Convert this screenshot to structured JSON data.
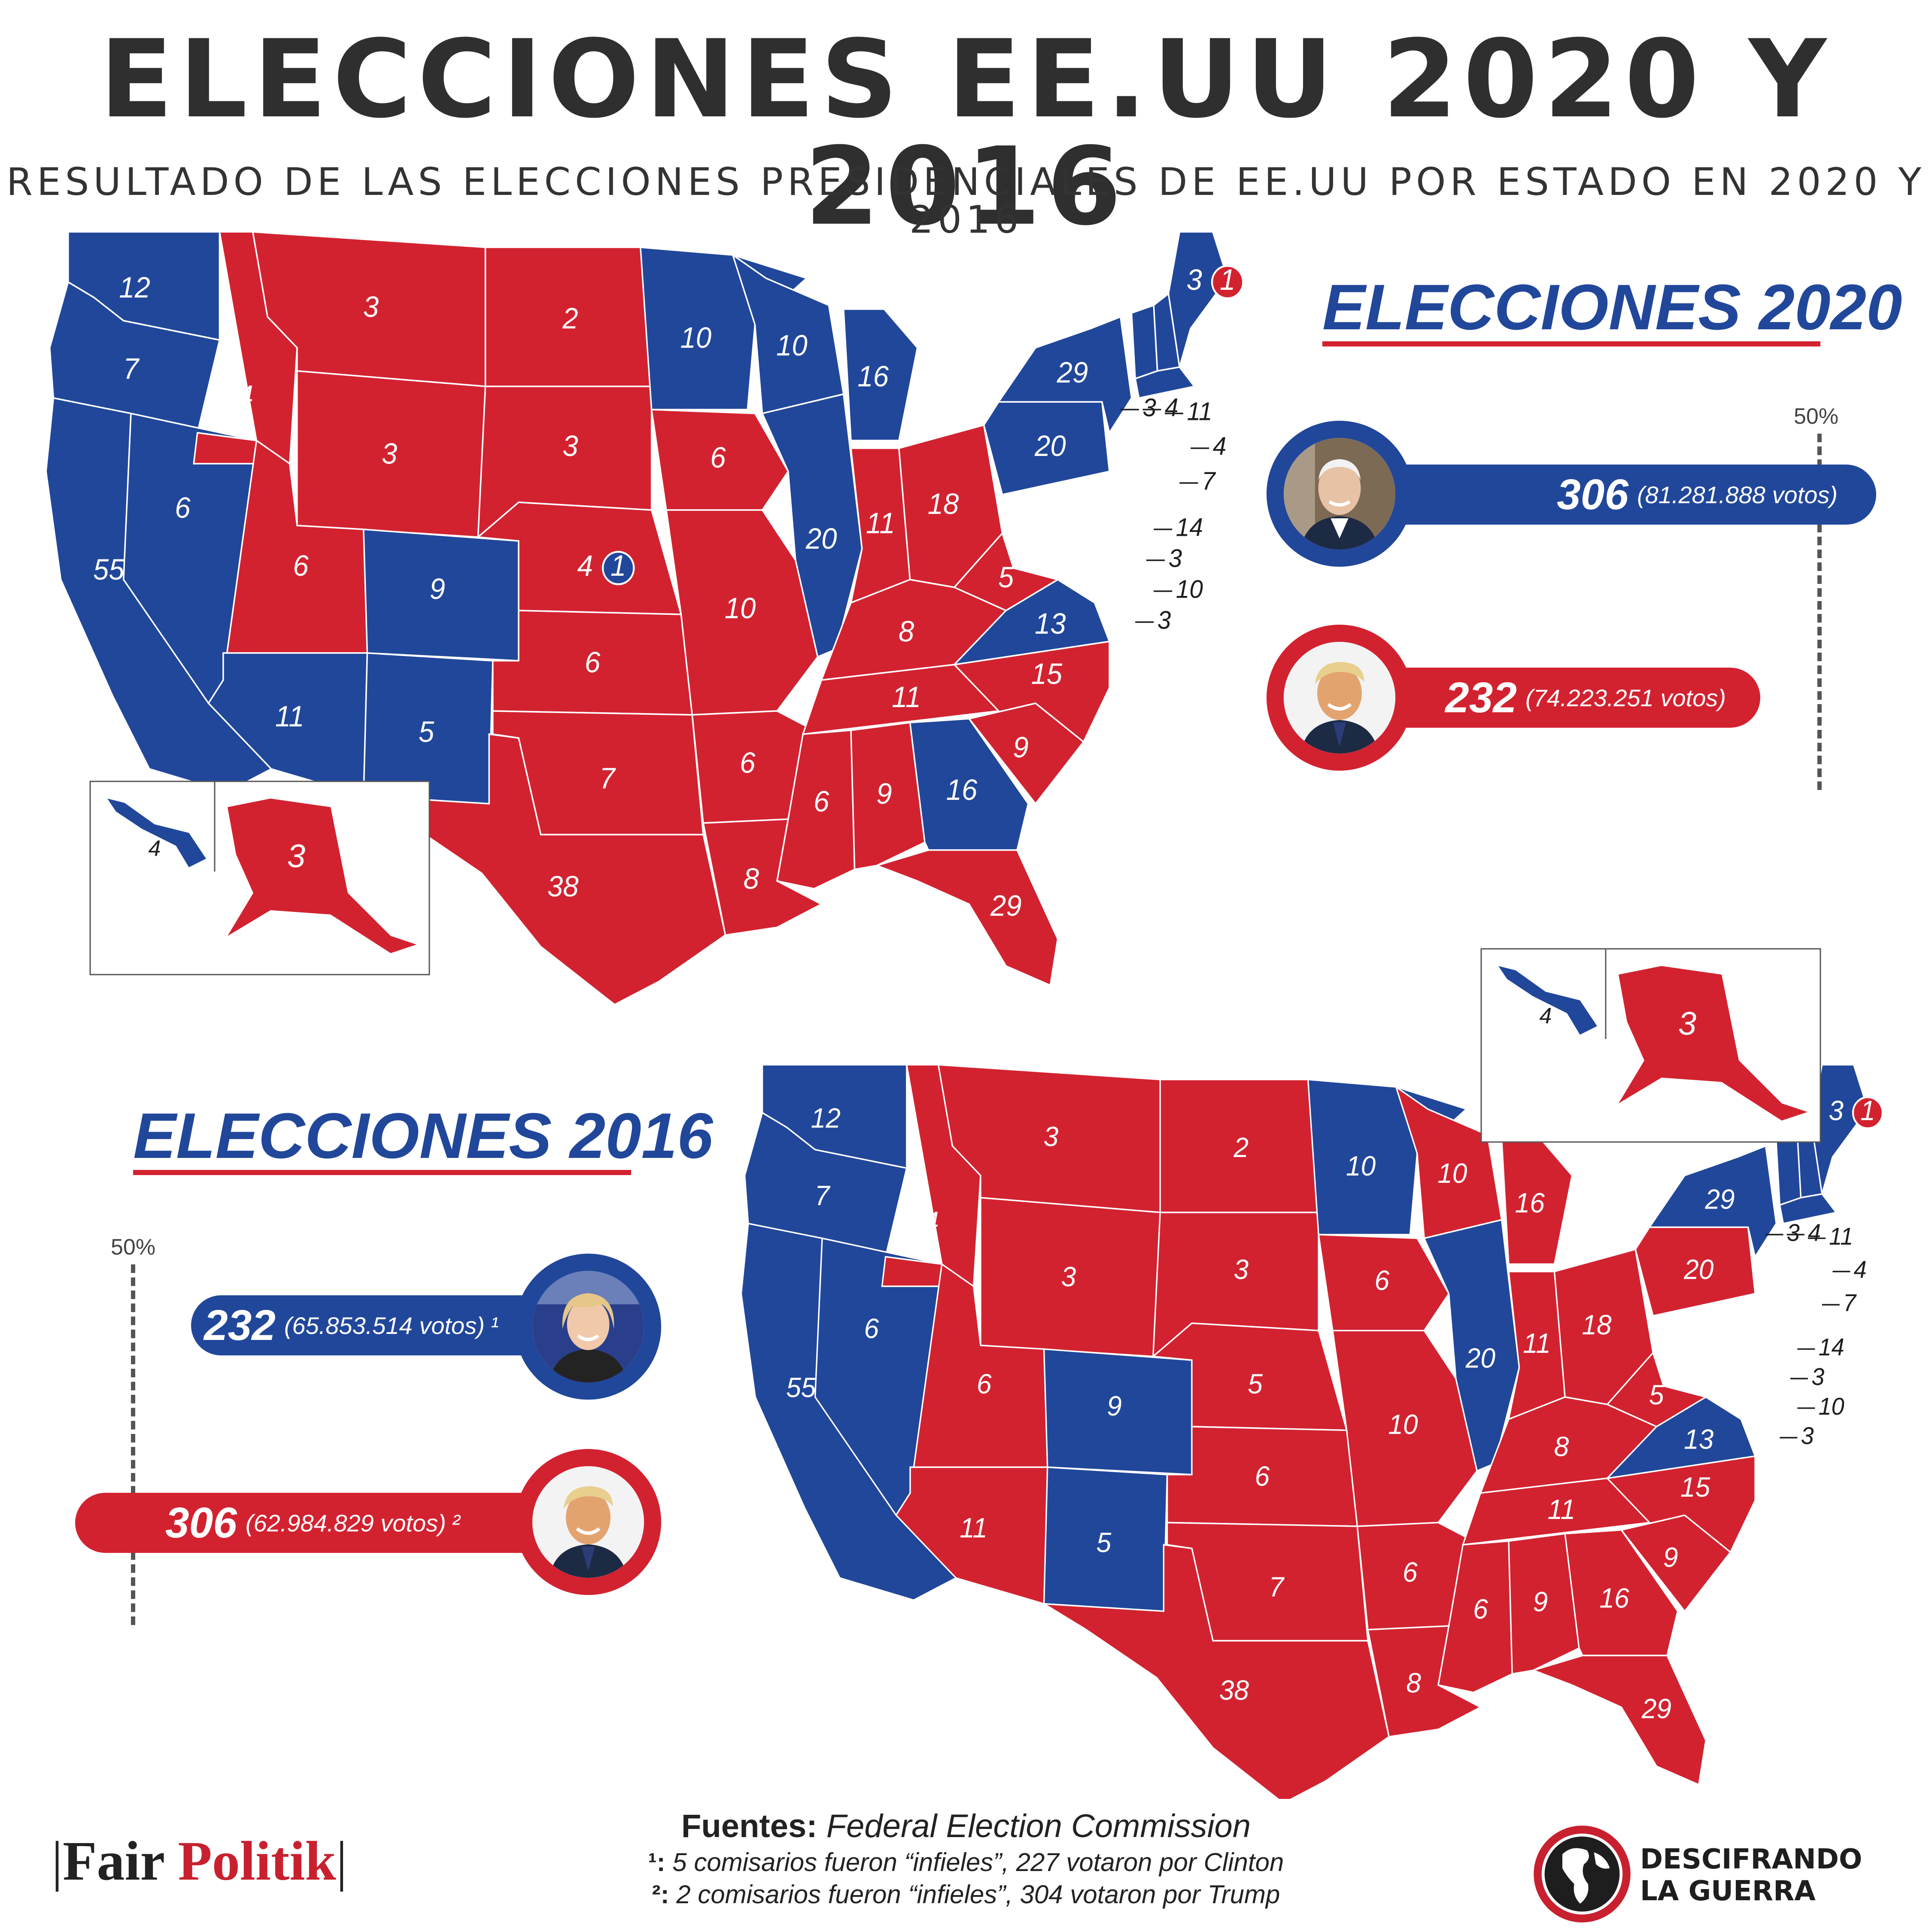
{
  "header": {
    "title": "ELECCIONES EE.UU 2020 Y 2016",
    "subtitle": "RESULTADO DE LAS ELECCIONES PRESIDENCIALES DE EE.UU POR ESTADO EN 2020 Y 2016"
  },
  "colors": {
    "democrat": "#21479a",
    "republican": "#d22230"
  },
  "map_2020": {
    "heading": "ELECCIONES 2020",
    "threshold_label": "50%",
    "states": [
      {
        "id": "WA",
        "votes": "12",
        "party": "D"
      },
      {
        "id": "OR",
        "votes": "7",
        "party": "D"
      },
      {
        "id": "CA",
        "votes": "55",
        "party": "D"
      },
      {
        "id": "NV",
        "votes": "6",
        "party": "D"
      },
      {
        "id": "ID",
        "votes": "4",
        "party": "R"
      },
      {
        "id": "MT",
        "votes": "3",
        "party": "R"
      },
      {
        "id": "WY",
        "votes": "3",
        "party": "R"
      },
      {
        "id": "UT",
        "votes": "6",
        "party": "R"
      },
      {
        "id": "CO",
        "votes": "9",
        "party": "D"
      },
      {
        "id": "AZ",
        "votes": "11",
        "party": "D"
      },
      {
        "id": "NM",
        "votes": "5",
        "party": "D"
      },
      {
        "id": "ND",
        "votes": "2",
        "party": "R"
      },
      {
        "id": "SD",
        "votes": "3",
        "party": "R"
      },
      {
        "id": "NE",
        "votes": "4",
        "party": "R",
        "split": "1"
      },
      {
        "id": "KS",
        "votes": "6",
        "party": "R"
      },
      {
        "id": "OK",
        "votes": "7",
        "party": "R"
      },
      {
        "id": "TX",
        "votes": "38",
        "party": "R"
      },
      {
        "id": "MN",
        "votes": "10",
        "party": "D"
      },
      {
        "id": "IA",
        "votes": "6",
        "party": "R"
      },
      {
        "id": "MO",
        "votes": "10",
        "party": "R"
      },
      {
        "id": "AR",
        "votes": "6",
        "party": "R"
      },
      {
        "id": "LA",
        "votes": "8",
        "party": "R"
      },
      {
        "id": "WI",
        "votes": "10",
        "party": "D"
      },
      {
        "id": "IL",
        "votes": "20",
        "party": "D"
      },
      {
        "id": "MI",
        "votes": "16",
        "party": "D"
      },
      {
        "id": "IN",
        "votes": "11",
        "party": "R"
      },
      {
        "id": "OH",
        "votes": "18",
        "party": "R"
      },
      {
        "id": "KY",
        "votes": "8",
        "party": "R"
      },
      {
        "id": "TN",
        "votes": "11",
        "party": "R"
      },
      {
        "id": "MS",
        "votes": "6",
        "party": "R"
      },
      {
        "id": "AL",
        "votes": "9",
        "party": "R"
      },
      {
        "id": "GA",
        "votes": "16",
        "party": "D"
      },
      {
        "id": "FL",
        "votes": "29",
        "party": "R"
      },
      {
        "id": "SC",
        "votes": "9",
        "party": "R"
      },
      {
        "id": "NC",
        "votes": "15",
        "party": "R"
      },
      {
        "id": "VA",
        "votes": "13",
        "party": "D"
      },
      {
        "id": "WV",
        "votes": "5",
        "party": "R"
      },
      {
        "id": "PA",
        "votes": "20",
        "party": "D"
      },
      {
        "id": "NY",
        "votes": "29",
        "party": "D"
      },
      {
        "id": "VT",
        "votes": "3",
        "party": "D"
      },
      {
        "id": "NH",
        "votes": "4",
        "party": "D"
      },
      {
        "id": "ME",
        "votes": "3",
        "party": "D",
        "split": "1"
      },
      {
        "id": "MA",
        "votes": "11",
        "party": "D"
      },
      {
        "id": "RI",
        "votes": "4",
        "party": "D"
      },
      {
        "id": "CT",
        "votes": "7",
        "party": "D"
      },
      {
        "id": "NJ",
        "votes": "14",
        "party": "D"
      },
      {
        "id": "DE",
        "votes": "3",
        "party": "D"
      },
      {
        "id": "MD",
        "votes": "10",
        "party": "D"
      },
      {
        "id": "DC",
        "votes": "3",
        "party": "D"
      },
      {
        "id": "HI",
        "votes": "4",
        "party": "D"
      },
      {
        "id": "AK",
        "votes": "3",
        "party": "R"
      }
    ],
    "candidates": [
      {
        "name": "Biden",
        "electoral_votes": "306",
        "popular_votes": "(81.281.888 votos)",
        "party": "D",
        "share": 0.569
      },
      {
        "name": "Trump",
        "electoral_votes": "232",
        "popular_votes": "(74.223.251 votos)",
        "party": "R",
        "share": 0.431
      }
    ]
  },
  "map_2016": {
    "heading": "ELECCIONES 2016",
    "threshold_label": "50%",
    "states": [
      {
        "id": "WA",
        "votes": "12",
        "party": "D"
      },
      {
        "id": "OR",
        "votes": "7",
        "party": "D"
      },
      {
        "id": "CA",
        "votes": "55",
        "party": "D"
      },
      {
        "id": "NV",
        "votes": "6",
        "party": "D"
      },
      {
        "id": "ID",
        "votes": "4",
        "party": "R"
      },
      {
        "id": "MT",
        "votes": "3",
        "party": "R"
      },
      {
        "id": "WY",
        "votes": "3",
        "party": "R"
      },
      {
        "id": "UT",
        "votes": "6",
        "party": "R"
      },
      {
        "id": "CO",
        "votes": "9",
        "party": "D"
      },
      {
        "id": "AZ",
        "votes": "11",
        "party": "R"
      },
      {
        "id": "NM",
        "votes": "5",
        "party": "D"
      },
      {
        "id": "ND",
        "votes": "2",
        "party": "R"
      },
      {
        "id": "SD",
        "votes": "3",
        "party": "R"
      },
      {
        "id": "NE",
        "votes": "5",
        "party": "R"
      },
      {
        "id": "KS",
        "votes": "6",
        "party": "R"
      },
      {
        "id": "OK",
        "votes": "7",
        "party": "R"
      },
      {
        "id": "TX",
        "votes": "38",
        "party": "R"
      },
      {
        "id": "MN",
        "votes": "10",
        "party": "D"
      },
      {
        "id": "IA",
        "votes": "6",
        "party": "R"
      },
      {
        "id": "MO",
        "votes": "10",
        "party": "R"
      },
      {
        "id": "AR",
        "votes": "6",
        "party": "R"
      },
      {
        "id": "LA",
        "votes": "8",
        "party": "R"
      },
      {
        "id": "WI",
        "votes": "10",
        "party": "R"
      },
      {
        "id": "IL",
        "votes": "20",
        "party": "D"
      },
      {
        "id": "MI",
        "votes": "16",
        "party": "R"
      },
      {
        "id": "IN",
        "votes": "11",
        "party": "R"
      },
      {
        "id": "OH",
        "votes": "18",
        "party": "R"
      },
      {
        "id": "KY",
        "votes": "8",
        "party": "R"
      },
      {
        "id": "TN",
        "votes": "11",
        "party": "R"
      },
      {
        "id": "MS",
        "votes": "6",
        "party": "R"
      },
      {
        "id": "AL",
        "votes": "9",
        "party": "R"
      },
      {
        "id": "GA",
        "votes": "16",
        "party": "R"
      },
      {
        "id": "FL",
        "votes": "29",
        "party": "R"
      },
      {
        "id": "SC",
        "votes": "9",
        "party": "R"
      },
      {
        "id": "NC",
        "votes": "15",
        "party": "R"
      },
      {
        "id": "VA",
        "votes": "13",
        "party": "D"
      },
      {
        "id": "WV",
        "votes": "5",
        "party": "R"
      },
      {
        "id": "PA",
        "votes": "20",
        "party": "R"
      },
      {
        "id": "NY",
        "votes": "29",
        "party": "D"
      },
      {
        "id": "VT",
        "votes": "3",
        "party": "D"
      },
      {
        "id": "NH",
        "votes": "4",
        "party": "D"
      },
      {
        "id": "ME",
        "votes": "3",
        "party": "D",
        "split": "1"
      },
      {
        "id": "MA",
        "votes": "11",
        "party": "D"
      },
      {
        "id": "RI",
        "votes": "4",
        "party": "D"
      },
      {
        "id": "CT",
        "votes": "7",
        "party": "D"
      },
      {
        "id": "NJ",
        "votes": "14",
        "party": "D"
      },
      {
        "id": "DE",
        "votes": "3",
        "party": "D"
      },
      {
        "id": "MD",
        "votes": "10",
        "party": "D"
      },
      {
        "id": "DC",
        "votes": "3",
        "party": "D"
      },
      {
        "id": "HI",
        "votes": "4",
        "party": "D"
      },
      {
        "id": "AK",
        "votes": "3",
        "party": "R"
      }
    ],
    "candidates": [
      {
        "name": "Clinton",
        "electoral_votes": "232",
        "popular_votes": "(65.853.514 votos)",
        "footnote": "¹",
        "party": "D",
        "share": 0.431
      },
      {
        "name": "Trump",
        "electoral_votes": "306",
        "popular_votes": "(62.984.829 votos)",
        "footnote": "²",
        "party": "R",
        "share": 0.569
      }
    ]
  },
  "footer": {
    "sources_label": "Fuentes:",
    "sources_value": "Federal Election Commission",
    "note1_marker": "¹:",
    "note1_text": "5 comisarios fueron “infieles”, 227 votaron por Clinton",
    "note2_marker": "²:",
    "note2_text": "2 comisarios fueron “infieles”, 304 votaron por Trump",
    "logo_left_part1": "Fair",
    "logo_left_part2": "Politik",
    "logo_right_line1": "DESCIFRANDO",
    "logo_right_line2": "LA GUERRA"
  }
}
